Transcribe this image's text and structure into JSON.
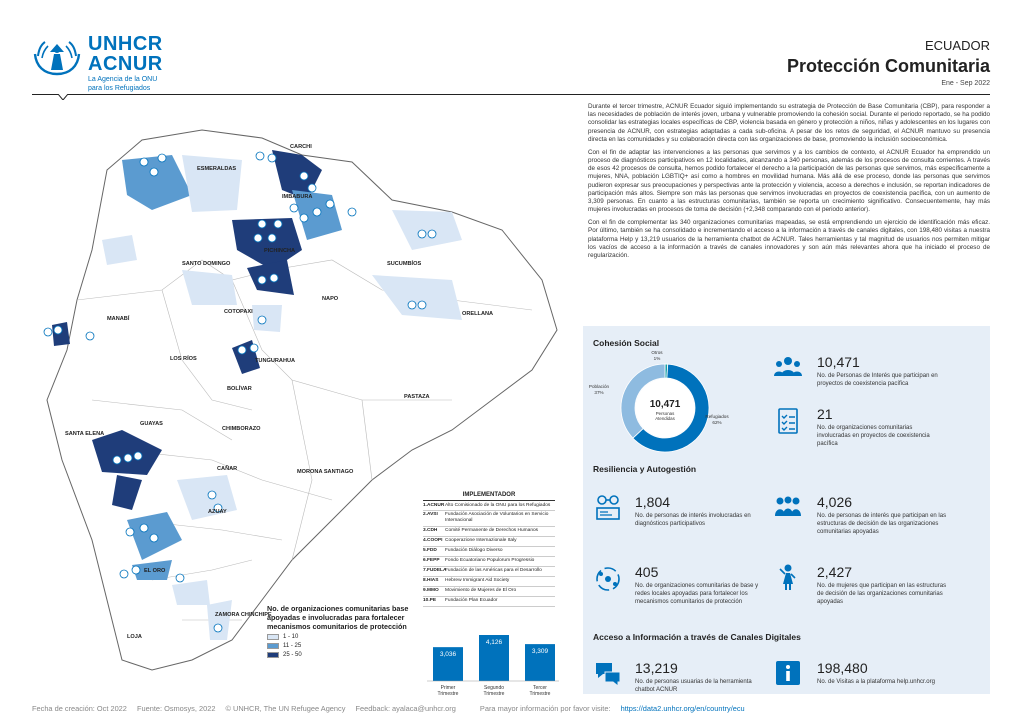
{
  "header": {
    "logo_line1": "UNHCR",
    "logo_line2": "ACNUR",
    "logo_line3": "La Agencia de la ONU",
    "logo_line4": "para los Refugiados",
    "country": "ECUADOR",
    "title": "Protección Comunitaria",
    "period": "Ene - Sep 2022"
  },
  "intro": {
    "p1": "Durante el tercer trimestre, ACNUR Ecuador siguió implementando su estrategia de Protección de Base Comunitaria (CBP), para responder a las necesidades de población de interés joven, urbana y vulnerable promoviendo la cohesión social. Durante el periodo reportado, se ha podido consolidar las estrategias locales específicas de CBP, violencia basada en género y protección a niños, niñas y adolescentes en los lugares con presencia de ACNUR, con estrategias adaptadas a cada sub-oficina. A pesar de los retos de seguridad, el ACNUR mantuvo su presencia directa en las comunidades y su colaboración directa con las organizaciones de base, promoviendo la inclusión socioeconómica.",
    "p2": "Con el fin de adaptar las intervenciones a las personas que servimos y a los cambios de contexto, el ACNUR Ecuador ha emprendido un proceso de diagnósticos participativos en 12 localidades, alcanzando a 340 personas, además de los procesos de consulta corrientes. A través de esos 42 procesos de consulta, hemos podido fortalecer el derecho a la participación de las personas que servimos, más específicamente a mujeres, NNA, población LGBTIQ+ así como a hombres en movilidad humana. Más allá de ese proceso, donde las personas que servimos pudieron expresar sus preocupaciones y perspectivas ante la protección y violencia, acceso a derechos e inclusión, se reportan indicadores de participación más altos. Siempre son más las personas que servimos involucradas en proyectos de coexistencia pacífica, con un aumento de 3,309 personas. En cuanto a las estructuras comunitarias, también se reporta un crecimiento significativo. Consecuentemente, hay más mujeres involucradas en procesos de toma de decisión (+2,348 comparando con el periodo anterior).",
    "p3": "Con el fin de complementar las 340 organizaciones comunitarias mapeadas, se está emprendiendo un ejercicio de identificación más eficaz. Por último, también se ha consolidado e incrementando el acceso a la información a través de canales digitales, con 198,480 visitas a nuestra plataforma Help y 13,219 usuarios de la herramienta chatbot de ACNUR. Tales herramientas y tal magnitud de usuarios nos permiten mitigar los vacíos de acceso a la información a través de canales innovadores y son aún más relevantes ahora que ha iniciado el proceso de regularización."
  },
  "cohesion": {
    "title": "Cohesión Social",
    "donut_total": "10,471",
    "donut_label1": "Personas",
    "donut_label2": "Atendidas",
    "segments": [
      {
        "label": "Otros",
        "pct": "1%",
        "value": 1,
        "color": "#18a0a8"
      },
      {
        "label": "Refugiados",
        "pct": "62%",
        "value": 62,
        "color": "#0072bc"
      },
      {
        "label": "Población",
        "pct": "37%",
        "value": 37,
        "color": "#8ebbe0"
      }
    ],
    "stat1_num": "10,471",
    "stat1_desc": "No. de Personas de Interés que participan en proyectos de coexistencia pacífica",
    "stat2_num": "21",
    "stat2_desc": "No. de organizaciones comunitarias involucradas en proyectos de coexistencia pacífica"
  },
  "resiliencia": {
    "title": "Resiliencia y Autogestión",
    "s1_num": "1,804",
    "s1_desc": "No. de personas de interés involucradas en diagnósticos participativos",
    "s2_num": "4,026",
    "s2_desc": "No. de personas de interés que participan en las estructuras de decisión de las organizaciones comunitarias apoyadas",
    "s3_num": "405",
    "s3_desc": "No. de organizaciones comunitarias de base y redes locales apoyadas para fortalecer los mecanismos comunitarios de protección",
    "s4_num": "2,427",
    "s4_desc": "No. de mujeres que participan en las estructuras de decisión de las organizaciones comunitarias apoyadas"
  },
  "digital": {
    "title": "Acceso a Información a través de Canales Digitales",
    "s1_num": "13,219",
    "s1_desc": "No. de personas usuarias de la herramienta chatbot ACNUR",
    "s2_num": "198,480",
    "s2_desc": "No. de Visitas a la plataforma help.unhcr.org"
  },
  "implementador": {
    "title": "IMPLEMENTADOR",
    "rows": [
      {
        "code": "1.ACNUR",
        "name": "Alto Comisionado de la ONU para los Refugiados"
      },
      {
        "code": "2.AVSI",
        "name": "Fundación Asociación de Voluntarios en Servicio Internacional"
      },
      {
        "code": "3.CDH",
        "name": "Comité Permanente de Derechos Humanos"
      },
      {
        "code": "4.COOPI",
        "name": "Cooperazione Internazionale Italy"
      },
      {
        "code": "5.FDD",
        "name": "Fundación Diálogo Diverso"
      },
      {
        "code": "6.FEPP",
        "name": "Fondo Ecuatoriano Populorum Progressio"
      },
      {
        "code": "7.FUDELA",
        "name": "Fundación de las Américas para el Desarrollo"
      },
      {
        "code": "8.HIAS",
        "name": "Hebrew Immigrant Aid Society"
      },
      {
        "code": "9.MMO",
        "name": "Movimiento de Mujeres de El Oro"
      },
      {
        "code": "10.PE",
        "name": "Fundación Plan Ecuador"
      }
    ]
  },
  "legend": {
    "title": "No. de organizaciones comunitarias base apoyadas e involucradas para fortalecer mecanismos comunitarios de protección",
    "items": [
      {
        "label": "1 - 10",
        "color": "#d9e6f5"
      },
      {
        "label": "11 - 25",
        "color": "#5b9bd0"
      },
      {
        "label": "25 - 50",
        "color": "#1f3d7a"
      }
    ]
  },
  "chart_data": {
    "type": "bar",
    "categories": [
      "Primer Trimestre",
      "Segundo Trimestre",
      "Tercer Trimestre"
    ],
    "values": [
      3036,
      4126,
      3309
    ],
    "labels": [
      "3,036",
      "4,126",
      "3,309"
    ],
    "color": "#0072bc"
  },
  "provinces": [
    "CARCHI",
    "ESMERALDAS",
    "IMBABURA",
    "SUCUMBÍOS",
    "PICHINCHA",
    "SANTO DOMINGO",
    "NAPO",
    "ORELLANA",
    "MANABÍ",
    "COTOPAXI",
    "LOS RÍOS",
    "TUNGURAHUA",
    "BOLÍVAR",
    "PASTAZA",
    "CHIMBORAZO",
    "GUAYAS",
    "SANTA ELENA",
    "CAÑAR",
    "MORONA SANTIAGO",
    "AZUAY",
    "EL ORO",
    "LOJA",
    "ZAMORA CHINCHIPE"
  ],
  "footer": {
    "created": "Fecha de creación: Oct 2022",
    "source": "Fuente: Osmosys, 2022",
    "copy": "© UNHCR, The UN Refugee Agency",
    "feedback": "Feedback: ayalaca@unhcr.org",
    "more": "Para mayor información por favor visite:",
    "link": "https://data2.unhcr.org/en/country/ecu"
  }
}
